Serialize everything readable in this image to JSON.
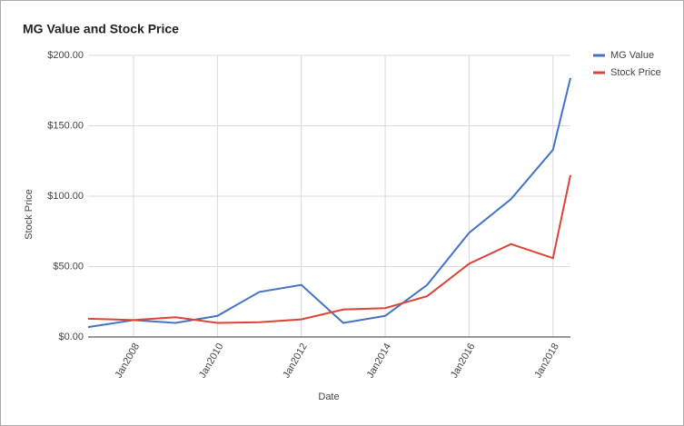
{
  "chart_data": {
    "type": "line",
    "title": "MG Value and Stock Price",
    "x_label": "Date",
    "y_label": "Stock Price",
    "x": [
      "2006-12",
      "2008-01",
      "2009-01",
      "2010-01",
      "2011-01",
      "2012-01",
      "2013-01",
      "2014-01",
      "2015-01",
      "2016-01",
      "2017-01",
      "2018-01",
      "2018-06"
    ],
    "series": [
      {
        "name": "MG Value",
        "color": "#4472c4",
        "values": [
          7,
          12,
          10,
          15,
          32,
          37,
          10,
          15,
          37,
          74,
          98,
          133,
          184
        ]
      },
      {
        "name": "Stock Price",
        "color": "#db4437",
        "values": [
          13,
          12,
          14,
          10,
          10.5,
          12.5,
          19.5,
          20.5,
          29,
          52,
          66,
          56,
          115
        ]
      }
    ],
    "xlim": [
      "2006-12",
      "2018-06"
    ],
    "xticks": [
      {
        "value": "2008-01",
        "label": "Jan2008"
      },
      {
        "value": "2010-01",
        "label": "Jan2010"
      },
      {
        "value": "2012-01",
        "label": "Jan2012"
      },
      {
        "value": "2014-01",
        "label": "Jan2014"
      },
      {
        "value": "2016-01",
        "label": "Jan2016"
      },
      {
        "value": "2018-01",
        "label": "Jan2018"
      }
    ],
    "ylim": [
      0,
      200
    ],
    "yticks": [
      {
        "value": 0,
        "label": "$0.00"
      },
      {
        "value": 50,
        "label": "$50.00"
      },
      {
        "value": 100,
        "label": "$100.00"
      },
      {
        "value": 150,
        "label": "$150.00"
      },
      {
        "value": 200,
        "label": "$200.00"
      }
    ],
    "grid": true,
    "legend": "right"
  }
}
